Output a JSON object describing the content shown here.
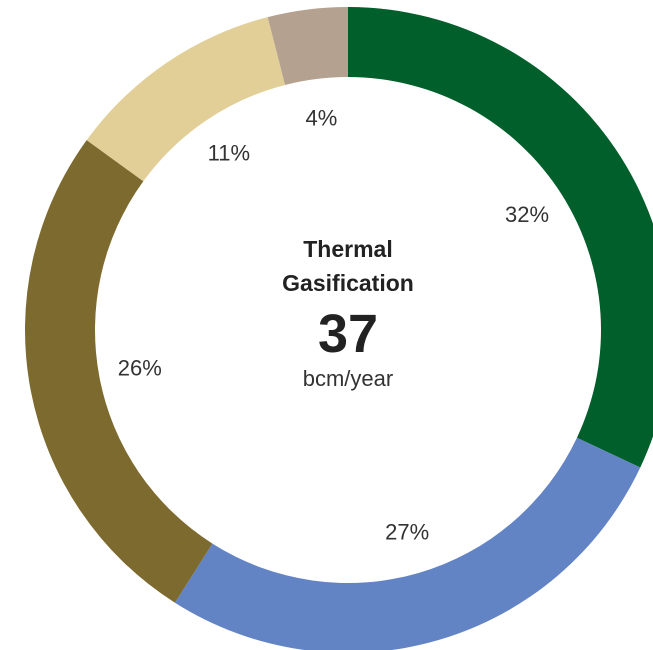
{
  "chart_data": {
    "type": "donut",
    "title": "Thermal Gasification",
    "total": 37,
    "total_unit": "bcm/year",
    "values": [
      32,
      27,
      26,
      11,
      4
    ],
    "value_labels": [
      "32%",
      "27%",
      "26%",
      "11%",
      "4%"
    ],
    "colors": [
      "#005f2a",
      "#6384c4",
      "#7d6a2e",
      "#e2cf98",
      "#b5a190"
    ]
  }
}
